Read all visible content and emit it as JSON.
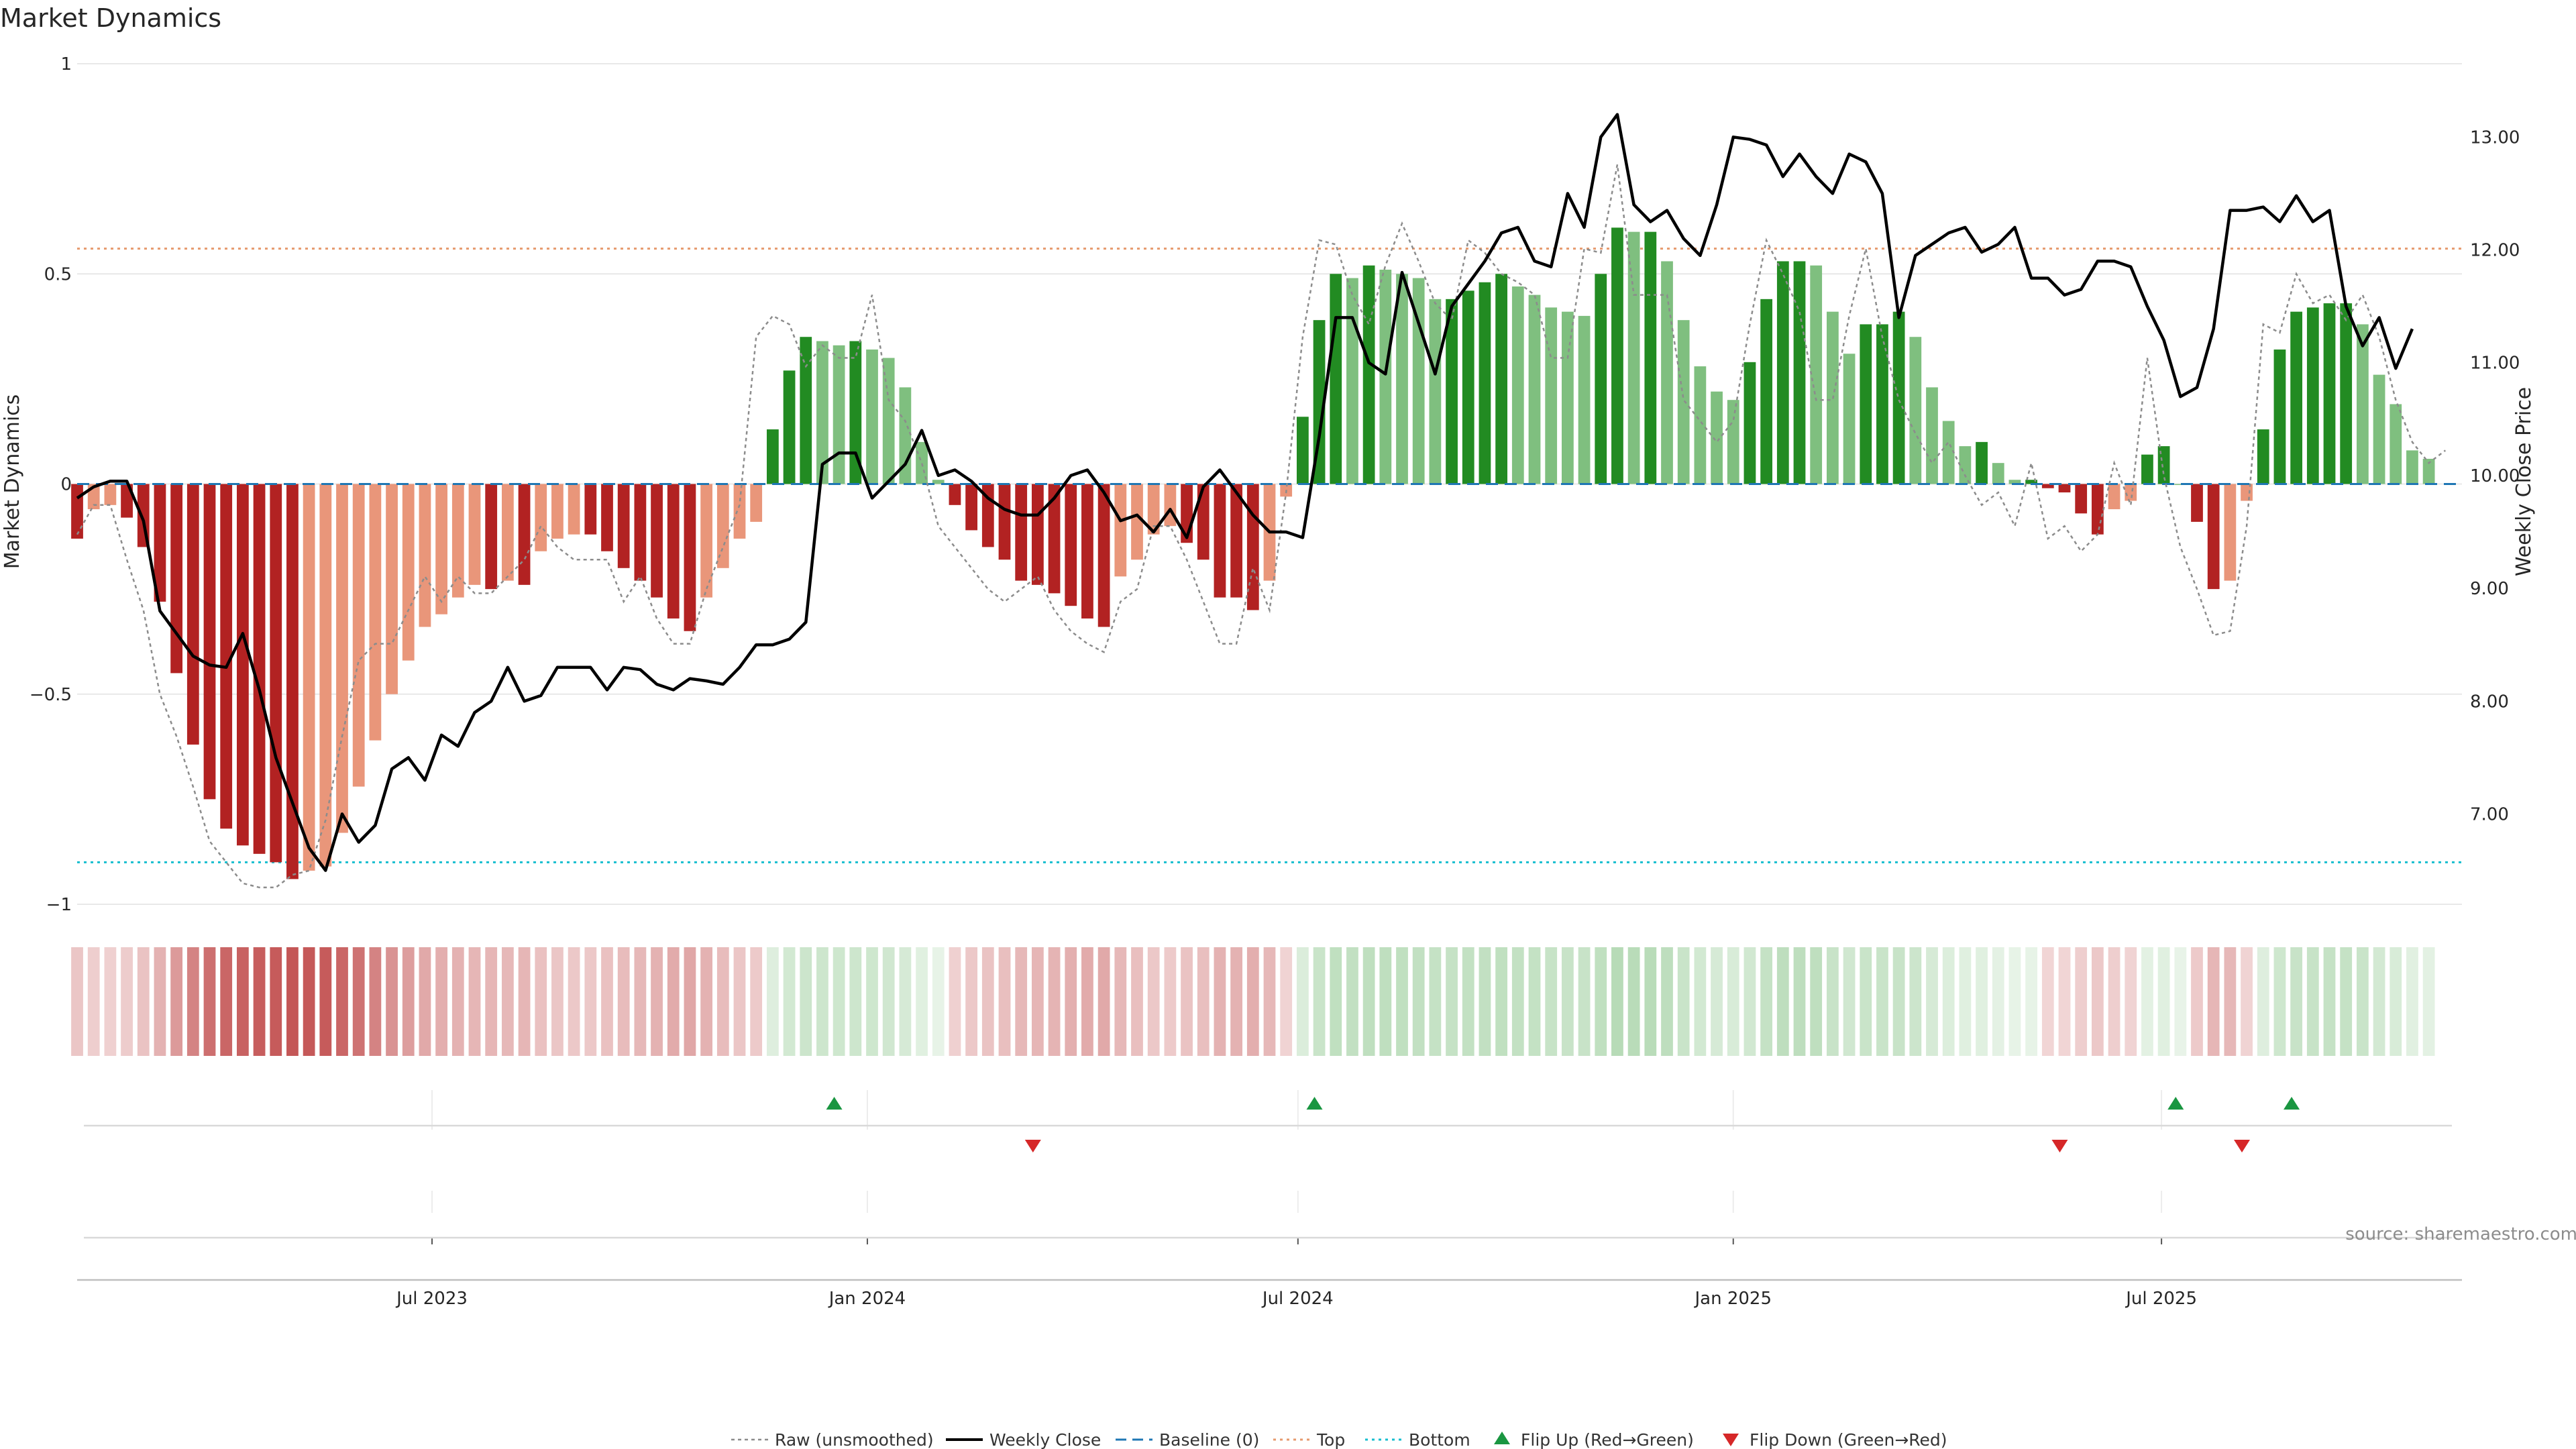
{
  "chart_data": {
    "type": "bar",
    "title": "Market Dynamics",
    "ylabel_left": "Market Dynamics",
    "ylabel_right": "Weekly Close Price",
    "source": "source: sharemaestro.com",
    "ylim_left": [
      -1,
      1
    ],
    "left_ticks": [
      1,
      0.5,
      0,
      -0.5,
      -1
    ],
    "left_tick_labels": [
      "1",
      "0.5",
      "0",
      "−0.5",
      "−1"
    ],
    "right_ticks": [
      7,
      8,
      9,
      10,
      11,
      12,
      13
    ],
    "right_tick_labels": [
      "7.00",
      "8.00",
      "9.00",
      "10.00",
      "11.00",
      "12.00",
      "13.00"
    ],
    "ylim_right": [
      6.2,
      13.65
    ],
    "x_range": [
      "2023-02-01",
      "2025-11-05"
    ],
    "x_ticks": [
      {
        "date": "2023-07-01",
        "label": "Jul 2023"
      },
      {
        "date": "2024-01-01",
        "label": "Jan 2024"
      },
      {
        "date": "2024-07-01",
        "label": "Jul 2024"
      },
      {
        "date": "2025-01-01",
        "label": "Jan 2025"
      },
      {
        "date": "2025-07-01",
        "label": "Jul 2025"
      }
    ],
    "first_week": "2023-02-01",
    "top_level": 0.56,
    "bottom_level": -0.9,
    "baseline": 0,
    "grid": true,
    "legend_position": "bottom-center",
    "colors": {
      "strong_red": "#b22222",
      "weak_red": "#e9967a",
      "strong_green": "#228b22",
      "weak_green": "#7fbf7f",
      "close": "#000000",
      "raw": "#8c8c8c",
      "baseline": "#1f77b4",
      "top": "#e69a6e",
      "bottom": "#17becf",
      "flip_up": "#1a9641",
      "flip_down": "#d62728",
      "grid": "#e8e8e8"
    },
    "series": [
      {
        "name": "Market Dynamics",
        "values": [
          -0.13,
          -0.06,
          -0.05,
          -0.08,
          -0.15,
          -0.28,
          -0.45,
          -0.62,
          -0.75,
          -0.82,
          -0.86,
          -0.88,
          -0.9,
          -0.94,
          -0.92,
          -0.91,
          -0.83,
          -0.72,
          -0.61,
          -0.5,
          -0.42,
          -0.34,
          -0.31,
          -0.27,
          -0.24,
          -0.25,
          -0.23,
          -0.24,
          -0.16,
          -0.13,
          -0.12,
          -0.12,
          -0.16,
          -0.2,
          -0.23,
          -0.27,
          -0.32,
          -0.35,
          -0.27,
          -0.2,
          -0.13,
          -0.09,
          0.13,
          0.27,
          0.35,
          0.34,
          0.33,
          0.34,
          0.32,
          0.3,
          0.23,
          0.1,
          0.01,
          -0.05,
          -0.11,
          -0.15,
          -0.18,
          -0.23,
          -0.24,
          -0.26,
          -0.29,
          -0.32,
          -0.34,
          -0.22,
          -0.18,
          -0.12,
          -0.1,
          -0.14,
          -0.18,
          -0.27,
          -0.27,
          -0.3,
          -0.23,
          -0.03,
          0.16,
          0.39,
          0.5,
          0.49,
          0.52,
          0.51,
          0.5,
          0.49,
          0.44,
          0.44,
          0.46,
          0.48,
          0.5,
          0.47,
          0.45,
          0.42,
          0.41,
          0.4,
          0.5,
          0.61,
          0.6,
          0.6,
          0.53,
          0.39,
          0.28,
          0.22,
          0.2,
          0.29,
          0.44,
          0.53,
          0.53,
          0.52,
          0.41,
          0.31,
          0.38,
          0.38,
          0.41,
          0.35,
          0.23,
          0.15,
          0.09,
          0.1,
          0.05,
          0.01,
          0.01,
          -0.01,
          -0.02,
          -0.07,
          -0.12,
          -0.06,
          -0.04,
          0.07,
          0.09,
          0,
          -0.09,
          -0.25,
          -0.23,
          -0.04,
          0.13,
          0.32,
          0.41,
          0.42,
          0.43,
          0.43,
          0.38,
          0.26,
          0.19,
          0.08,
          0.06
        ]
      },
      {
        "name": "Weekly Close",
        "values": [
          9.8,
          9.9,
          9.95,
          9.95,
          9.6,
          8.8,
          8.6,
          8.4,
          8.32,
          8.3,
          8.6,
          8.1,
          7.5,
          7.1,
          6.7,
          6.5,
          7.0,
          6.75,
          6.9,
          7.4,
          7.5,
          7.3,
          7.7,
          7.6,
          7.9,
          8.0,
          8.3,
          8.0,
          8.05,
          8.3,
          8.3,
          8.3,
          8.1,
          8.3,
          8.28,
          8.15,
          8.1,
          8.2,
          8.18,
          8.15,
          8.3,
          8.5,
          8.5,
          8.55,
          8.7,
          10.1,
          10.2,
          10.2,
          9.8,
          9.95,
          10.1,
          10.4,
          10.0,
          10.05,
          9.95,
          9.8,
          9.7,
          9.65,
          9.65,
          9.8,
          10.0,
          10.05,
          9.85,
          9.6,
          9.65,
          9.5,
          9.7,
          9.45,
          9.9,
          10.05,
          9.85,
          9.65,
          9.5,
          9.5,
          9.45,
          10.35,
          11.4,
          11.4,
          11.0,
          10.9,
          11.8,
          11.35,
          10.9,
          11.5,
          11.7,
          11.9,
          12.15,
          12.2,
          11.9,
          11.85,
          12.5,
          12.2,
          13.0,
          13.2,
          12.4,
          12.25,
          12.35,
          12.1,
          11.95,
          12.4,
          13.0,
          12.98,
          12.93,
          12.65,
          12.85,
          12.65,
          12.5,
          12.85,
          12.78,
          12.5,
          11.4,
          11.95,
          12.05,
          12.15,
          12.2,
          11.98,
          12.05,
          12.2,
          11.75,
          11.75,
          11.6,
          11.65,
          11.9,
          11.9,
          11.85,
          11.5,
          11.2,
          10.7,
          10.78,
          11.3,
          12.35,
          12.35,
          12.38,
          12.25,
          12.48,
          12.25,
          12.35,
          11.5,
          11.15,
          11.4,
          10.95,
          11.3
        ]
      },
      {
        "name": "Raw (unsmoothed)",
        "values": [
          -0.12,
          -0.05,
          -0.05,
          -0.18,
          -0.3,
          -0.5,
          -0.6,
          -0.72,
          -0.85,
          -0.9,
          -0.95,
          -0.96,
          -0.96,
          -0.93,
          -0.92,
          -0.8,
          -0.6,
          -0.42,
          -0.38,
          -0.38,
          -0.3,
          -0.22,
          -0.28,
          -0.22,
          -0.26,
          -0.26,
          -0.22,
          -0.18,
          -0.1,
          -0.15,
          -0.18,
          -0.18,
          -0.18,
          -0.28,
          -0.22,
          -0.32,
          -0.38,
          -0.38,
          -0.25,
          -0.15,
          -0.05,
          0.35,
          0.4,
          0.38,
          0.28,
          0.33,
          0.3,
          0.3,
          0.45,
          0.2,
          0.15,
          0.05,
          -0.1,
          -0.15,
          -0.2,
          -0.25,
          -0.28,
          -0.25,
          -0.22,
          -0.3,
          -0.35,
          -0.38,
          -0.4,
          -0.28,
          -0.25,
          -0.1,
          -0.1,
          -0.18,
          -0.28,
          -0.38,
          -0.38,
          -0.2,
          -0.3,
          -0.02,
          0.35,
          0.58,
          0.57,
          0.45,
          0.38,
          0.52,
          0.62,
          0.53,
          0.43,
          0.39,
          0.58,
          0.55,
          0.5,
          0.48,
          0.45,
          0.3,
          0.3,
          0.56,
          0.55,
          0.76,
          0.45,
          0.45,
          0.45,
          0.2,
          0.15,
          0.1,
          0.15,
          0.38,
          0.58,
          0.5,
          0.41,
          0.2,
          0.2,
          0.4,
          0.56,
          0.35,
          0.2,
          0.12,
          0.05,
          0.1,
          0.02,
          -0.05,
          -0.02,
          -0.1,
          0.05,
          -0.13,
          -0.1,
          -0.16,
          -0.12,
          0.05,
          -0.05,
          0.3,
          0.02,
          -0.15,
          -0.25,
          -0.36,
          -0.35,
          -0.1,
          0.38,
          0.36,
          0.5,
          0.43,
          0.45,
          0.39,
          0.45,
          0.35,
          0.2,
          0.1,
          0.05,
          0.08
        ]
      }
    ],
    "flip_up_dates": [
      "2023-12-18",
      "2024-07-08",
      "2025-07-07",
      "2025-08-25"
    ],
    "flip_down_dates": [
      "2024-03-11",
      "2025-05-19",
      "2025-08-04"
    ],
    "legend": [
      {
        "label": "Raw (unsmoothed)",
        "kind": "raw"
      },
      {
        "label": "Weekly Close",
        "kind": "close"
      },
      {
        "label": "Baseline (0)",
        "kind": "baseline"
      },
      {
        "label": "Top",
        "kind": "top"
      },
      {
        "label": "Bottom",
        "kind": "bottom"
      },
      {
        "label": "Flip Up (Red→Green)",
        "kind": "flip_up"
      },
      {
        "label": "Flip Down (Green→Red)",
        "kind": "flip_down"
      }
    ]
  }
}
